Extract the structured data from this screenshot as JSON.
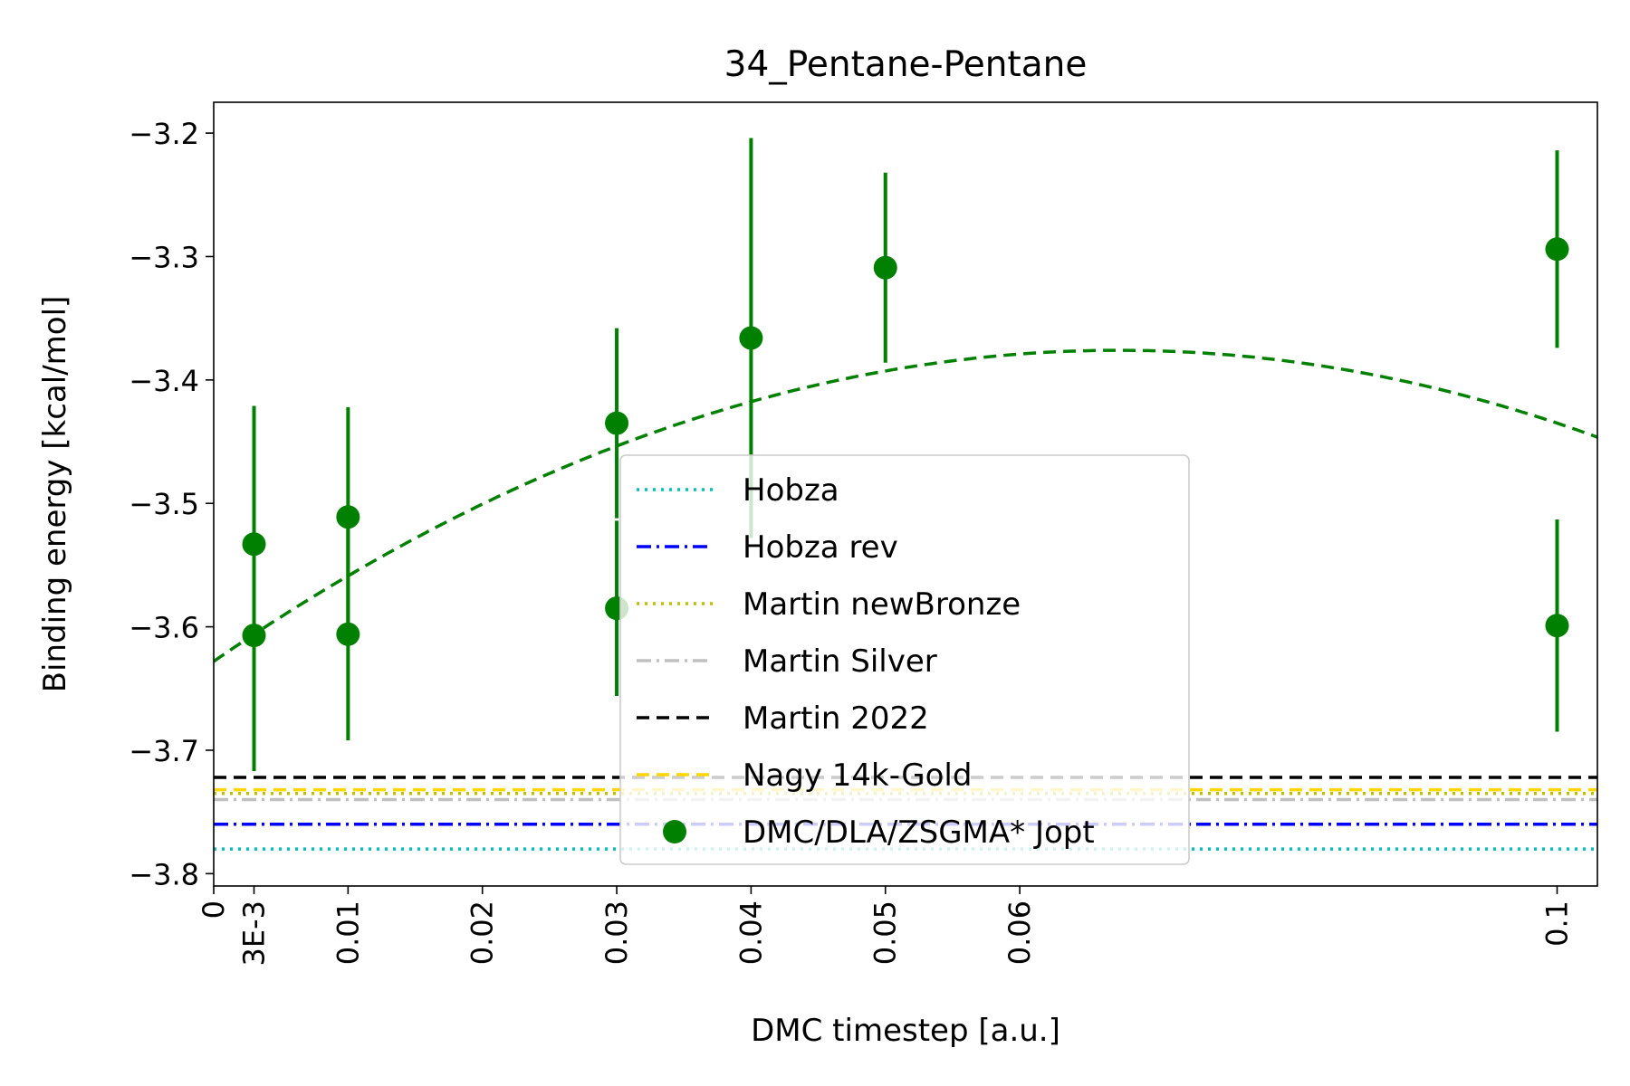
{
  "chart_data": {
    "type": "scatter",
    "title": "34_Pentane-Pentane",
    "xlabel": "DMC timestep [a.u.]",
    "ylabel": "Binding energy [kcal/mol]",
    "xlim": [
      0,
      0.103
    ],
    "ylim": [
      -3.81,
      -3.175
    ],
    "x_ticks": [
      {
        "value": 0,
        "label": "0"
      },
      {
        "value": 0.003,
        "label": "3E-3"
      },
      {
        "value": 0.01,
        "label": "0.01"
      },
      {
        "value": 0.02,
        "label": "0.02"
      },
      {
        "value": 0.03,
        "label": "0.03"
      },
      {
        "value": 0.04,
        "label": "0.04"
      },
      {
        "value": 0.05,
        "label": "0.05"
      },
      {
        "value": 0.06,
        "label": "0.06"
      },
      {
        "value": 0.1,
        "label": "0.1"
      }
    ],
    "y_ticks": [
      {
        "value": -3.2,
        "label": "−3.2"
      },
      {
        "value": -3.3,
        "label": "−3.3"
      },
      {
        "value": -3.4,
        "label": "−3.4"
      },
      {
        "value": -3.5,
        "label": "−3.5"
      },
      {
        "value": -3.6,
        "label": "−3.6"
      },
      {
        "value": -3.7,
        "label": "−3.7"
      },
      {
        "value": -3.8,
        "label": "−3.8"
      }
    ],
    "reference_lines": [
      {
        "name": "Hobza",
        "y": -3.78,
        "color": "#00bfbf",
        "style": "dotted"
      },
      {
        "name": "Hobza rev",
        "y": -3.76,
        "color": "#0000ff",
        "style": "dashdot"
      },
      {
        "name": "Martin newBronze",
        "y": -3.735,
        "color": "#bfbf00",
        "style": "dotted"
      },
      {
        "name": "Martin Silver",
        "y": -3.74,
        "color": "#c0c0c0",
        "style": "dashdot"
      },
      {
        "name": "Martin 2022",
        "y": -3.722,
        "color": "#000000",
        "style": "dashed"
      },
      {
        "name": "Nagy 14k-Gold",
        "y": -3.732,
        "color": "#ffd700",
        "style": "dashed"
      }
    ],
    "series": [
      {
        "name": "DMC/DLA/ZSGMA* Jopt",
        "color": "#008000",
        "points": [
          {
            "x": 0.003,
            "y": -3.533,
            "err": 0.112
          },
          {
            "x": 0.003,
            "y": -3.607,
            "err": 0.11
          },
          {
            "x": 0.01,
            "y": -3.511,
            "err": 0.089
          },
          {
            "x": 0.01,
            "y": -3.606,
            "err": 0.086
          },
          {
            "x": 0.03,
            "y": -3.435,
            "err": 0.077
          },
          {
            "x": 0.03,
            "y": -3.585,
            "err": 0.071
          },
          {
            "x": 0.04,
            "y": -3.366,
            "err": 0.162
          },
          {
            "x": 0.05,
            "y": -3.309,
            "err": 0.077
          },
          {
            "x": 0.1,
            "y": -3.294,
            "err": 0.08
          },
          {
            "x": 0.1,
            "y": -3.599,
            "err": 0.086
          }
        ]
      }
    ],
    "fit_curve": {
      "type": "quadratic",
      "coefficients": [
        -3.628,
        7.48,
        -55.5
      ],
      "color": "#008000",
      "style": "dashed"
    },
    "legend": {
      "placement": "lower-center",
      "entries": [
        {
          "label": "Hobza",
          "color": "#00bfbf",
          "style": "dotted",
          "marker": "line"
        },
        {
          "label": "Hobza rev",
          "color": "#0000ff",
          "style": "dashdot",
          "marker": "line"
        },
        {
          "label": "Martin newBronze",
          "color": "#bfbf00",
          "style": "dotted",
          "marker": "line"
        },
        {
          "label": "Martin Silver",
          "color": "#c0c0c0",
          "style": "dashdot",
          "marker": "line"
        },
        {
          "label": "Martin 2022",
          "color": "#000000",
          "style": "dashed",
          "marker": "line"
        },
        {
          "label": "Nagy 14k-Gold",
          "color": "#ffd700",
          "style": "dashed",
          "marker": "line"
        },
        {
          "label": "DMC/DLA/ZSGMA* Jopt",
          "color": "#008000",
          "style": "solid",
          "marker": "dot"
        }
      ]
    },
    "grid": false
  }
}
